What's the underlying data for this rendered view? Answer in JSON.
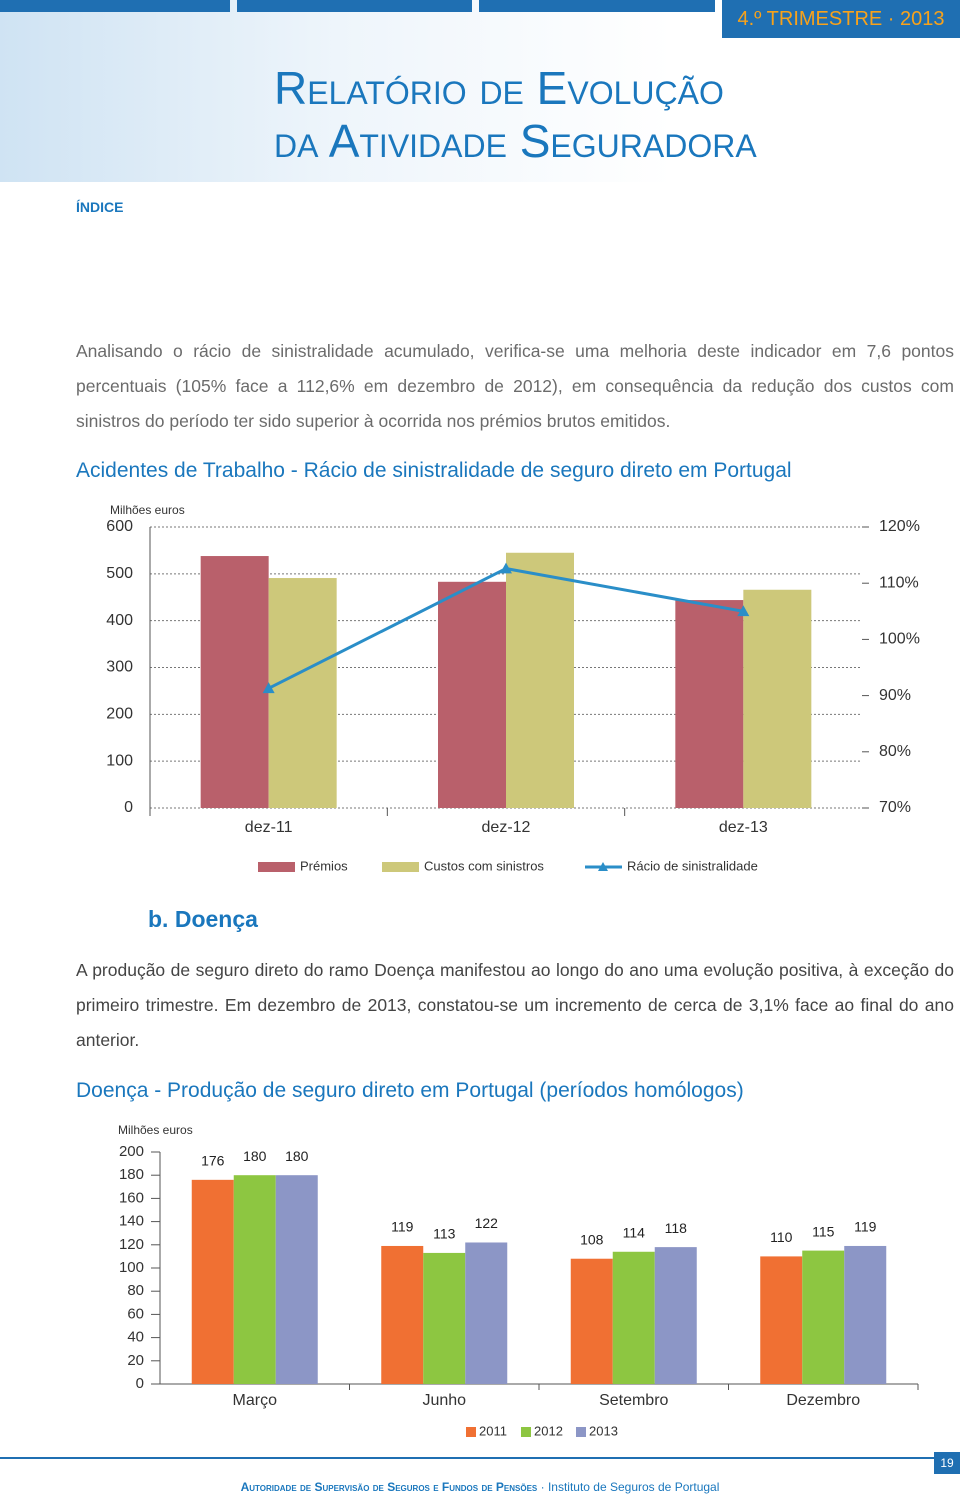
{
  "header": {
    "period": "4.º TRIMESTRE · 2013",
    "title_line_1": "Relatório de Evolução",
    "title_line_2": "da Atividade Seguradora",
    "index_link": "ÍNDICE"
  },
  "paragraphs": [
    "Analisando o rácio de sinistralidade acumulado, verifica-se uma melhoria deste indicador em 7,6 pontos percentuais (105% face a 112,6% em dezembro de 2012), em consequência da redução dos custos com sinistros do período ter sido superior à ocorrida nos prémios brutos emitidos.",
    "A produção de seguro direto do ramo Doença manifestou ao longo do ano uma evolução positiva, à exceção do primeiro trimestre. Em dezembro de 2013, constatou-se um incremento de cerca de 3,1% face ao final do ano anterior."
  ],
  "section_heading": "b. Doença",
  "chart_data": [
    {
      "type": "combo",
      "title": "Acidentes de Trabalho - Rácio de sinistralidade de seguro direto em Portugal",
      "y_label": "Milhões euros",
      "categories": [
        "dez-11",
        "dez-12",
        "dez-13"
      ],
      "series": [
        {
          "name": "Prémios",
          "type": "bar",
          "color": "#b9606b",
          "values": [
            538,
            483,
            444
          ]
        },
        {
          "name": "Custos com sinistros",
          "type": "bar",
          "color": "#cdc87a",
          "values": [
            491,
            545,
            466
          ]
        },
        {
          "name": "Rácio de sinistralidade",
          "type": "line",
          "axis": "y2",
          "color": "#2a8ec8",
          "values": [
            91.3,
            112.6,
            105
          ]
        }
      ],
      "ylim": [
        0,
        600
      ],
      "yticks": [
        0,
        100,
        200,
        300,
        400,
        500,
        600
      ],
      "y2lim": [
        70,
        120
      ],
      "y2ticks": [
        {
          "value": 70,
          "label": "70%"
        },
        {
          "value": 80,
          "label": "80%"
        },
        {
          "value": 90,
          "label": "90%"
        },
        {
          "value": 100,
          "label": "100%"
        },
        {
          "value": 110,
          "label": "110%"
        },
        {
          "value": 120,
          "label": "120%"
        }
      ],
      "grid": true
    },
    {
      "type": "bar",
      "title": "Doença - Produção de seguro direto em Portugal (períodos homólogos)",
      "y_label": "Milhões euros",
      "categories": [
        "Março",
        "Junho",
        "Setembro",
        "Dezembro"
      ],
      "series": [
        {
          "name": "2011",
          "color": "#f07033",
          "values": [
            176,
            119,
            108,
            110
          ]
        },
        {
          "name": "2012",
          "color": "#8dc641",
          "values": [
            180,
            113,
            114,
            115
          ]
        },
        {
          "name": "2013",
          "color": "#8c96c6",
          "values": [
            180,
            122,
            118,
            119
          ]
        }
      ],
      "ylim": [
        0,
        200
      ],
      "yticks": [
        0,
        20,
        40,
        60,
        80,
        100,
        120,
        140,
        160,
        180,
        200
      ],
      "grid": false
    }
  ],
  "footer": {
    "parts": [
      "Autoridade de Supervisão de Seguros e Fundos de Pensões",
      "·",
      "Instituto de Seguros de Portugal"
    ],
    "page_number": "19"
  }
}
